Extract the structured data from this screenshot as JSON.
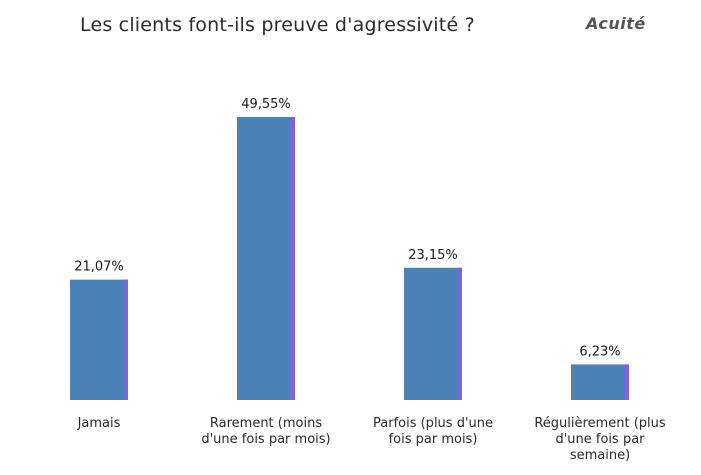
{
  "header": {
    "title": "Les clients font-ils preuve d'agressivité ?",
    "logo": "Acuité"
  },
  "colors": {
    "bar": "#4a81b6",
    "bar_edge": "#7b64d6"
  },
  "chart_data": {
    "type": "bar",
    "title": "Les clients font-ils preuve d'agressivité ?",
    "xlabel": "",
    "ylabel": "",
    "ylim": [
      0,
      49.55
    ],
    "grid": false,
    "legend": "none",
    "categories": [
      [
        "Jamais"
      ],
      [
        "Rarement (moins",
        "d'une fois par mois)"
      ],
      [
        "Parfois (plus d'une",
        "fois par mois)"
      ],
      [
        "Régulièrement (plus",
        "d'une fois par",
        "semaine)"
      ]
    ],
    "values": [
      21.07,
      49.55,
      23.15,
      6.23
    ],
    "value_labels": [
      "21,07%",
      "49,55%",
      "23,15%",
      "6,23%"
    ]
  }
}
